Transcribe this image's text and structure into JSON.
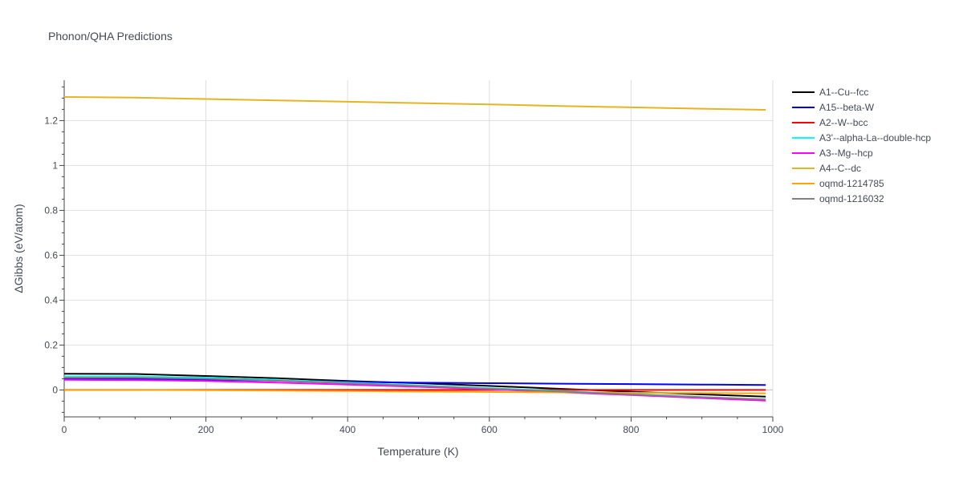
{
  "chart_data": {
    "type": "line",
    "title": "Phonon/QHA Predictions",
    "xlabel": "Temperature (K)",
    "ylabel": "ΔGibbs (eV/atom)",
    "xlim": [
      0,
      1000
    ],
    "ylim": [
      -0.12,
      1.38
    ],
    "x_ticks": [
      0,
      200,
      400,
      600,
      800,
      1000
    ],
    "x_tick_labels": [
      "0",
      "200",
      "400",
      "600",
      "800",
      "1000"
    ],
    "y_ticks": [
      0,
      0.2,
      0.4,
      0.6,
      0.8,
      1,
      1.2
    ],
    "y_tick_labels": [
      "0",
      "0.2",
      "0.4",
      "0.6",
      "0.8",
      "1",
      "1.2"
    ],
    "grid": true,
    "legend_position": "right",
    "x": [
      0,
      100,
      200,
      300,
      400,
      500,
      600,
      700,
      800,
      900,
      990
    ],
    "series": [
      {
        "name": "A1--Cu--fcc",
        "color": "#000000",
        "values": [
          0.072,
          0.071,
          0.062,
          0.052,
          0.04,
          0.03,
          0.018,
          0.005,
          -0.008,
          -0.02,
          -0.03
        ]
      },
      {
        "name": "A15--beta-W",
        "color": "#0000ff",
        "values": [
          0.05,
          0.049,
          0.046,
          0.041,
          0.036,
          0.032,
          0.03,
          0.028,
          0.026,
          0.024,
          0.022
        ]
      },
      {
        "name": "A2--W--bcc",
        "color": "#ff0000",
        "values": [
          0.0,
          0.0,
          0.0,
          0.0,
          0.0,
          0.0,
          0.0,
          0.0,
          0.0,
          0.0,
          0.0
        ]
      },
      {
        "name": "A3'--alpha-La--double-hcp",
        "color": "#00ffff",
        "values": [
          0.06,
          0.06,
          0.055,
          0.045,
          0.033,
          0.02,
          0.008,
          -0.005,
          -0.018,
          -0.032,
          -0.043
        ]
      },
      {
        "name": "A3--Mg--hcp",
        "color": "#ff00ff",
        "values": [
          0.045,
          0.044,
          0.04,
          0.033,
          0.024,
          0.014,
          0.003,
          -0.01,
          -0.023,
          -0.036,
          -0.048
        ]
      },
      {
        "name": "A4--C--dc",
        "color": "#e6b422",
        "values": [
          1.305,
          1.302,
          1.296,
          1.29,
          1.284,
          1.278,
          1.272,
          1.265,
          1.259,
          1.253,
          1.248
        ]
      },
      {
        "name": "oqmd-1214785",
        "color": "#ffa500",
        "values": [
          0.0,
          0.0,
          -0.001,
          -0.003,
          -0.005,
          -0.007,
          -0.009,
          -0.011,
          -0.013,
          -0.014,
          -0.015
        ]
      },
      {
        "name": "oqmd-1216032",
        "color": "#808080",
        "values": [
          0.055,
          0.055,
          0.05,
          0.041,
          0.03,
          0.018,
          0.006,
          -0.007,
          -0.02,
          -0.032,
          -0.042
        ]
      }
    ]
  }
}
